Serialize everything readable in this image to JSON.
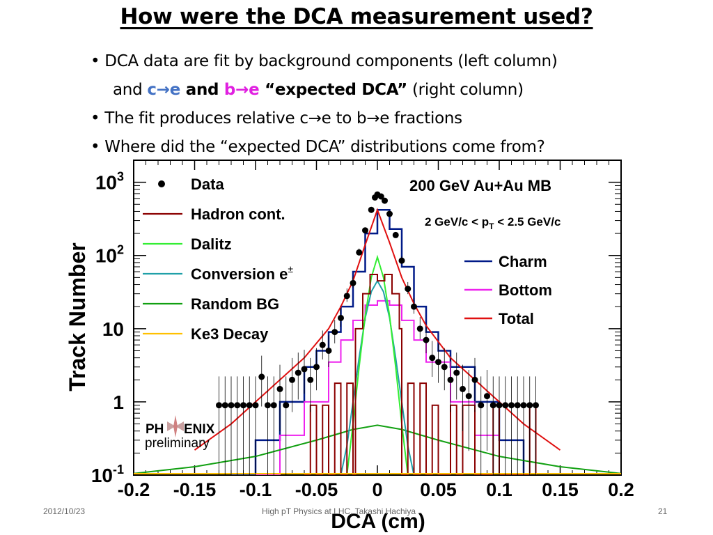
{
  "slide": {
    "title": "How were the DCA measurement used?",
    "bullet1_a": "DCA data are fit by background components (left column)",
    "bullet1_b_and": "and ",
    "bullet1_b_c": "c",
    "bullet1_b_arrow1": "→",
    "bullet1_b_e1": "e",
    "bullet1_b_and2": " and ",
    "bullet1_b_b": "b",
    "bullet1_b_arrow2": "→",
    "bullet1_b_e2": "e",
    "bullet1_b_expected": " “expected DCA”",
    "bullet1_b_rest": " (right column)",
    "bullet2": "The fit produces relative c→e to b→e fractions",
    "bullet3": "Where did the “expected DCA” distributions come from?",
    "bullet_char": "•"
  },
  "footer": {
    "date": "2012/10/23",
    "center": "High pT Physics at LHC, Takashi Hachiya",
    "page": "21"
  },
  "chart_data": {
    "type": "line",
    "xlabel": "DCA (cm)",
    "ylabel": "Track Number",
    "xlim": [
      -0.2,
      0.2
    ],
    "ylim": [
      0.1,
      2000
    ],
    "yscale": "log",
    "xticks": [
      -0.2,
      -0.15,
      -0.1,
      -0.05,
      0,
      0.05,
      0.1,
      0.15,
      0.2
    ],
    "xtick_labels": [
      "-0.2",
      "-0.15",
      "-0.1",
      "-0.05",
      "0",
      "0.05",
      "0.1",
      "0.15",
      "0.2"
    ],
    "yticks": [
      0.1,
      1,
      10,
      100,
      1000
    ],
    "ytick_labels": [
      {
        "base": "10",
        "sup": "-1"
      },
      {
        "base": "1",
        "sup": ""
      },
      {
        "base": "10",
        "sup": ""
      },
      {
        "base": "10",
        "sup": "2"
      },
      {
        "base": "10",
        "sup": "3"
      }
    ],
    "annotations": {
      "energy": "200 GeV  Au+Au MB",
      "pt_range_a": "2 GeV/c < p",
      "pt_range_sub": "T",
      "pt_range_b": " < 2.5 GeV/c"
    },
    "logo": {
      "line1": "PH",
      "line1b": "ENIX",
      "line2": "preliminary"
    },
    "colors": {
      "data": "#000000",
      "hadron": "#8b0000",
      "dalitz": "#33ee33",
      "conversion": "#20a0a8",
      "randombg": "#11a011",
      "ke3": "#ffc000",
      "charm": "#001a88",
      "bottom": "#ee22ee",
      "total": "#e01010"
    },
    "legend_left": [
      {
        "key": "data",
        "label": "Data",
        "marker": "dot"
      },
      {
        "key": "hadron",
        "label": "Hadron cont.",
        "marker": "line"
      },
      {
        "key": "dalitz",
        "label": "Dalitz",
        "marker": "line"
      },
      {
        "key": "conversion",
        "label": "Conversion e",
        "sup": "±",
        "marker": "line"
      },
      {
        "key": "randombg",
        "label": "Random BG",
        "marker": "line"
      },
      {
        "key": "ke3",
        "label": "Ke3 Decay",
        "marker": "line"
      }
    ],
    "legend_right": [
      {
        "key": "charm",
        "label": "Charm"
      },
      {
        "key": "bottom",
        "label": "Bottom"
      },
      {
        "key": "total",
        "label": "Total"
      }
    ],
    "series": [
      {
        "key": "data",
        "values": [
          [
            -0.13,
            0.9
          ],
          [
            -0.125,
            0.9
          ],
          [
            -0.12,
            0.9
          ],
          [
            -0.115,
            0.9
          ],
          [
            -0.11,
            0.9
          ],
          [
            -0.105,
            0.9
          ],
          [
            -0.1,
            0.9
          ],
          [
            -0.095,
            2.2
          ],
          [
            -0.09,
            0.9
          ],
          [
            -0.085,
            0.9
          ],
          [
            -0.08,
            1.5
          ],
          [
            -0.075,
            0.9
          ],
          [
            -0.07,
            2.0
          ],
          [
            -0.065,
            2.5
          ],
          [
            -0.06,
            2.8
          ],
          [
            -0.055,
            2.0
          ],
          [
            -0.05,
            3.0
          ],
          [
            -0.045,
            6
          ],
          [
            -0.04,
            5
          ],
          [
            -0.035,
            9
          ],
          [
            -0.03,
            14
          ],
          [
            -0.025,
            28
          ],
          [
            -0.02,
            42
          ],
          [
            -0.015,
            110
          ],
          [
            -0.01,
            220
          ],
          [
            -0.005,
            420
          ],
          [
            -0.002,
            620
          ],
          [
            0,
            680
          ],
          [
            0.003,
            640
          ],
          [
            0.006,
            560
          ],
          [
            0.01,
            370
          ],
          [
            0.015,
            190
          ],
          [
            0.02,
            85
          ],
          [
            0.025,
            35
          ],
          [
            0.03,
            20
          ],
          [
            0.035,
            10
          ],
          [
            0.04,
            7
          ],
          [
            0.045,
            4
          ],
          [
            0.05,
            3.5
          ],
          [
            0.055,
            3
          ],
          [
            0.06,
            2
          ],
          [
            0.065,
            2.5
          ],
          [
            0.07,
            1.5
          ],
          [
            0.075,
            1.2
          ],
          [
            0.08,
            2
          ],
          [
            0.085,
            0.9
          ],
          [
            0.09,
            1.2
          ],
          [
            0.095,
            0.9
          ],
          [
            0.1,
            0.9
          ],
          [
            0.105,
            0.9
          ],
          [
            0.11,
            0.9
          ],
          [
            0.115,
            0.9
          ],
          [
            0.12,
            0.9
          ],
          [
            0.125,
            0.9
          ],
          [
            0.13,
            0.9
          ]
        ]
      },
      {
        "key": "charm",
        "values": [
          [
            -0.12,
            0.1
          ],
          [
            -0.1,
            0.3
          ],
          [
            -0.08,
            1.0
          ],
          [
            -0.06,
            3
          ],
          [
            -0.05,
            5
          ],
          [
            -0.04,
            9
          ],
          [
            -0.03,
            20
          ],
          [
            -0.02,
            60
          ],
          [
            -0.01,
            200
          ],
          [
            0,
            420
          ],
          [
            0.01,
            230
          ],
          [
            0.02,
            70
          ],
          [
            0.03,
            20
          ],
          [
            0.04,
            9
          ],
          [
            0.05,
            5
          ],
          [
            0.06,
            3
          ],
          [
            0.08,
            1.0
          ],
          [
            0.1,
            0.3
          ],
          [
            0.12,
            0.1
          ]
        ]
      },
      {
        "key": "bottom",
        "values": [
          [
            -0.1,
            0.1
          ],
          [
            -0.08,
            0.35
          ],
          [
            -0.06,
            1.0
          ],
          [
            -0.04,
            3.5
          ],
          [
            -0.03,
            7
          ],
          [
            -0.02,
            13
          ],
          [
            -0.01,
            21
          ],
          [
            0,
            24
          ],
          [
            0.01,
            21
          ],
          [
            0.02,
            13
          ],
          [
            0.03,
            7
          ],
          [
            0.04,
            3.5
          ],
          [
            0.06,
            1.0
          ],
          [
            0.08,
            0.35
          ],
          [
            0.1,
            0.1
          ]
        ]
      },
      {
        "key": "total",
        "values": [
          [
            -0.15,
            0.22
          ],
          [
            -0.12,
            0.5
          ],
          [
            -0.1,
            1.0
          ],
          [
            -0.08,
            2.0
          ],
          [
            -0.06,
            4
          ],
          [
            -0.04,
            10
          ],
          [
            -0.03,
            20
          ],
          [
            -0.02,
            45
          ],
          [
            -0.01,
            140
          ],
          [
            0,
            420
          ],
          [
            0.01,
            150
          ],
          [
            0.02,
            50
          ],
          [
            0.03,
            22
          ],
          [
            0.04,
            11
          ],
          [
            0.06,
            4
          ],
          [
            0.08,
            2.0
          ],
          [
            0.1,
            1.0
          ],
          [
            0.12,
            0.5
          ],
          [
            0.15,
            0.22
          ]
        ]
      },
      {
        "key": "randombg",
        "values": [
          [
            -0.2,
            0.105
          ],
          [
            -0.15,
            0.13
          ],
          [
            -0.1,
            0.18
          ],
          [
            -0.05,
            0.3
          ],
          [
            -0.02,
            0.42
          ],
          [
            0,
            0.48
          ],
          [
            0.02,
            0.42
          ],
          [
            0.05,
            0.3
          ],
          [
            0.1,
            0.18
          ],
          [
            0.15,
            0.13
          ],
          [
            0.2,
            0.105
          ]
        ]
      },
      {
        "key": "conversion",
        "values": [
          [
            -0.03,
            0.1
          ],
          [
            -0.025,
            0.25
          ],
          [
            -0.02,
            1.0
          ],
          [
            -0.015,
            4
          ],
          [
            -0.01,
            14
          ],
          [
            -0.005,
            32
          ],
          [
            0,
            45
          ],
          [
            0.005,
            32
          ],
          [
            0.01,
            14
          ],
          [
            0.015,
            4
          ],
          [
            0.02,
            1.0
          ],
          [
            0.025,
            0.25
          ],
          [
            0.03,
            0.1
          ]
        ]
      },
      {
        "key": "dalitz",
        "values": [
          [
            -0.025,
            0.1
          ],
          [
            -0.02,
            0.5
          ],
          [
            -0.015,
            3
          ],
          [
            -0.01,
            15
          ],
          [
            -0.005,
            50
          ],
          [
            0,
            95
          ],
          [
            0.005,
            50
          ],
          [
            0.01,
            15
          ],
          [
            0.015,
            3
          ],
          [
            0.02,
            0.5
          ],
          [
            0.025,
            0.1
          ]
        ]
      },
      {
        "key": "hadron",
        "values": [
          [
            -0.06,
            0.1
          ],
          [
            -0.055,
            0.9
          ],
          [
            -0.05,
            0.1
          ],
          [
            -0.045,
            0.9
          ],
          [
            -0.04,
            0.1
          ],
          [
            -0.035,
            1.8
          ],
          [
            -0.03,
            0.1
          ],
          [
            -0.025,
            1.8
          ],
          [
            -0.02,
            0.1
          ],
          [
            -0.018,
            10
          ],
          [
            -0.012,
            30
          ],
          [
            -0.006,
            55
          ],
          [
            0,
            45
          ],
          [
            0.006,
            55
          ],
          [
            0.012,
            30
          ],
          [
            0.018,
            10
          ],
          [
            0.02,
            0.1
          ],
          [
            0.025,
            1.8
          ],
          [
            0.03,
            0.1
          ],
          [
            0.035,
            1.8
          ],
          [
            0.04,
            0.1
          ],
          [
            0.045,
            0.9
          ],
          [
            0.05,
            0.1
          ],
          [
            0.06,
            0.9
          ],
          [
            0.065,
            0.1
          ],
          [
            0.07,
            0.9
          ],
          [
            0.08,
            0.1
          ],
          [
            0.095,
            0.9
          ],
          [
            0.1,
            0.1
          ],
          [
            0.125,
            0.9
          ],
          [
            0.13,
            0.1
          ]
        ]
      }
    ]
  }
}
